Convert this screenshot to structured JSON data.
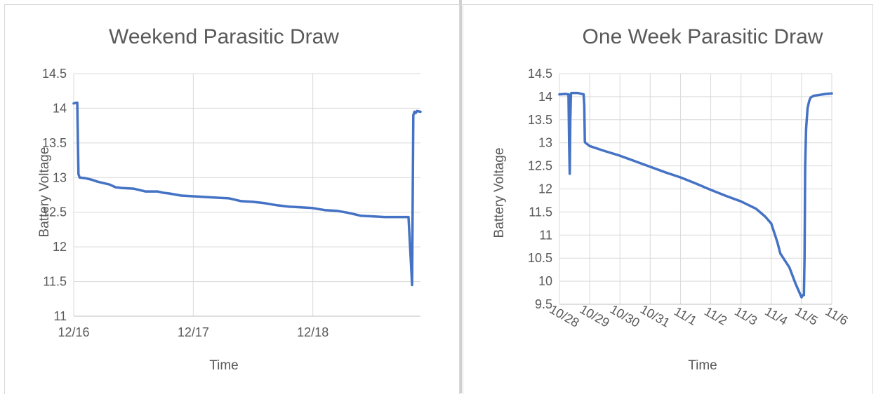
{
  "chart_data": [
    {
      "type": "line",
      "title": "Weekend Parasitic Draw",
      "xlabel": "Time",
      "ylabel": "Battery Voltage",
      "ylim": [
        11,
        14.5
      ],
      "yticks": [
        "11",
        "11.5",
        "12",
        "12.5",
        "13",
        "13.5",
        "14",
        "14.5"
      ],
      "xlim": [
        0,
        2.9
      ],
      "xticks": [
        {
          "x": 0,
          "label": "12/16"
        },
        {
          "x": 1,
          "label": "12/17"
        },
        {
          "x": 2,
          "label": "12/18"
        }
      ],
      "grid": true,
      "legend": "none",
      "series": [
        {
          "color": "#4472c4",
          "x": [
            0,
            0.02,
            0.03,
            0.035,
            0.04,
            0.05,
            0.1,
            0.15,
            0.2,
            0.25,
            0.3,
            0.35,
            0.4,
            0.5,
            0.6,
            0.7,
            0.75,
            0.8,
            0.9,
            1.0,
            1.1,
            1.2,
            1.3,
            1.4,
            1.5,
            1.6,
            1.7,
            1.8,
            1.9,
            2.0,
            2.1,
            2.2,
            2.3,
            2.4,
            2.5,
            2.6,
            2.7,
            2.8,
            2.83,
            2.84,
            2.85,
            2.86,
            2.87,
            2.9
          ],
          "y": [
            14.07,
            14.08,
            14.08,
            13.5,
            13.05,
            13.0,
            12.99,
            12.97,
            12.94,
            12.92,
            12.9,
            12.86,
            12.85,
            12.84,
            12.8,
            12.8,
            12.78,
            12.77,
            12.74,
            12.73,
            12.72,
            12.71,
            12.7,
            12.66,
            12.65,
            12.63,
            12.6,
            12.58,
            12.57,
            12.56,
            12.53,
            12.52,
            12.49,
            12.45,
            12.44,
            12.43,
            12.43,
            12.43,
            11.45,
            13.9,
            13.95,
            13.93,
            13.96,
            13.95
          ]
        }
      ]
    },
    {
      "type": "line",
      "title": "One Week Parasitic Draw",
      "xlabel": "Time",
      "ylabel": "Battery Voltage",
      "ylim": [
        9.5,
        14.5
      ],
      "yticks": [
        "9.5",
        "10",
        "10.5",
        "11",
        "11.5",
        "12",
        "12.5",
        "13",
        "13.5",
        "14",
        "14.5"
      ],
      "xlim": [
        0,
        9
      ],
      "xticks": [
        {
          "x": 0,
          "label": "10/28"
        },
        {
          "x": 1,
          "label": "10/29"
        },
        {
          "x": 2,
          "label": "10/30"
        },
        {
          "x": 3,
          "label": "10/31"
        },
        {
          "x": 4,
          "label": "11/1"
        },
        {
          "x": 5,
          "label": "11/2"
        },
        {
          "x": 6,
          "label": "11/3"
        },
        {
          "x": 7,
          "label": "11/4"
        },
        {
          "x": 8,
          "label": "11/5"
        },
        {
          "x": 9,
          "label": "11/6"
        }
      ],
      "grid": true,
      "legend": "none",
      "series": [
        {
          "color": "#4472c4",
          "x": [
            0,
            0.2,
            0.3,
            0.32,
            0.34,
            0.36,
            0.38,
            0.4,
            0.6,
            0.8,
            0.82,
            0.84,
            0.86,
            0.9,
            1.0,
            1.5,
            2.0,
            2.5,
            3.0,
            3.5,
            4.0,
            4.5,
            5.0,
            5.5,
            6.0,
            6.5,
            6.8,
            7.0,
            7.2,
            7.3,
            7.4,
            7.6,
            7.8,
            8.0,
            8.05,
            8.08,
            8.1,
            8.12,
            8.15,
            8.2,
            8.25,
            8.3,
            8.4,
            8.6,
            8.8,
            9.0
          ],
          "y": [
            14.05,
            14.06,
            14.05,
            13.0,
            12.33,
            13.5,
            14.07,
            14.08,
            14.08,
            14.05,
            13.8,
            13.02,
            13.0,
            12.98,
            12.93,
            12.82,
            12.72,
            12.6,
            12.48,
            12.36,
            12.25,
            12.12,
            11.98,
            11.85,
            11.73,
            11.57,
            11.4,
            11.25,
            10.85,
            10.6,
            10.5,
            10.3,
            9.95,
            9.65,
            9.7,
            9.7,
            10.5,
            12.5,
            13.3,
            13.75,
            13.9,
            13.98,
            14.02,
            14.04,
            14.06,
            14.07
          ]
        }
      ]
    }
  ]
}
